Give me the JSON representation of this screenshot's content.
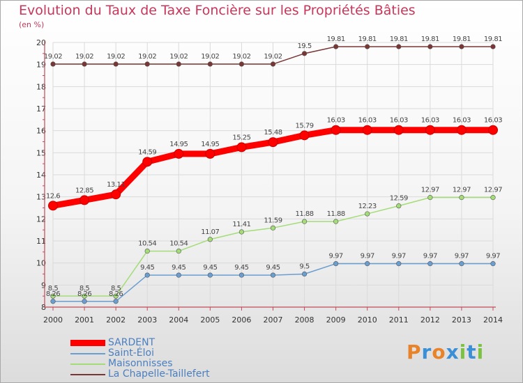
{
  "title": "Evolution du Taux de Taxe Foncière sur les Propriétés Bâties",
  "subtitle": "(en %)",
  "logo": {
    "text": "Proxiti",
    "letters": [
      "P",
      "r",
      "o",
      "x",
      "i",
      "t",
      "i"
    ],
    "colors": [
      "#e8832a",
      "#3a8fd6",
      "#e8832a",
      "#3a8fd6",
      "#7cc242",
      "#3a8fd6",
      "#7cc242"
    ]
  },
  "chart_data": {
    "type": "line",
    "title": "Evolution du Taux de Taxe Foncière sur les Propriétés Bâties",
    "ylabel": "(en %)",
    "x": [
      "2000",
      "2001",
      "2002",
      "2003",
      "2004",
      "2005",
      "2006",
      "2007",
      "2008",
      "2009",
      "2010",
      "2011",
      "2012",
      "2013",
      "2014"
    ],
    "ylim": [
      8,
      20
    ],
    "yticks": [
      8,
      9,
      10,
      11,
      12,
      13,
      14,
      15,
      16,
      17,
      18,
      19,
      20
    ],
    "grid": true,
    "legend_position": "bottom-left",
    "series": [
      {
        "name": "SARDENT",
        "color": "#ff0000",
        "emphasis": true,
        "values": [
          12.6,
          12.85,
          13.11,
          14.59,
          14.95,
          14.95,
          15.25,
          15.48,
          15.79,
          16.03,
          16.03,
          16.03,
          16.03,
          16.03,
          16.03
        ],
        "labels": [
          "12.6",
          "12.85",
          "13.11",
          "14.59",
          "14.95",
          "14.95",
          "15.25",
          "15.48",
          "15.79",
          "16.03",
          "16.03",
          "16.03",
          "16.03",
          "16.03",
          "16.03"
        ]
      },
      {
        "name": "Saint-Éloi",
        "color": "#6a9ed0",
        "emphasis": false,
        "values": [
          8.26,
          8.26,
          8.26,
          9.45,
          9.45,
          9.45,
          9.45,
          9.45,
          9.5,
          9.97,
          9.97,
          9.97,
          9.97,
          9.97,
          9.97
        ],
        "labels": [
          "8.26",
          "8.26",
          "8.26",
          "9.45",
          "9.45",
          "9.45",
          "9.45",
          "9.45",
          "9.5",
          "9.97",
          "9.97",
          "9.97",
          "9.97",
          "9.97",
          "9.97"
        ]
      },
      {
        "name": "Maisonnisses",
        "color": "#a4dc78",
        "emphasis": false,
        "values": [
          8.5,
          8.5,
          8.5,
          10.54,
          10.54,
          11.07,
          11.41,
          11.59,
          11.88,
          11.88,
          12.23,
          12.59,
          12.97,
          12.97,
          12.97
        ],
        "labels": [
          "8.5",
          "8.5",
          "8.5",
          "10.54",
          "10.54",
          "11.07",
          "11.41",
          "11.59",
          "11.88",
          "11.88",
          "12.23",
          "12.59",
          "12.97",
          "12.97",
          "12.97"
        ]
      },
      {
        "name": "La Chapelle-Taillefert",
        "color": "#7a3535",
        "emphasis": false,
        "values": [
          19.02,
          19.02,
          19.02,
          19.02,
          19.02,
          19.02,
          19.02,
          19.02,
          19.5,
          19.81,
          19.81,
          19.81,
          19.81,
          19.81,
          19.81
        ],
        "labels": [
          "19.02",
          "19.02",
          "19.02",
          "19.02",
          "19.02",
          "19.02",
          "19.02",
          "19.02",
          "19.5",
          "19.81",
          "19.81",
          "19.81",
          "19.81",
          "19.81",
          "19.81"
        ]
      }
    ]
  }
}
